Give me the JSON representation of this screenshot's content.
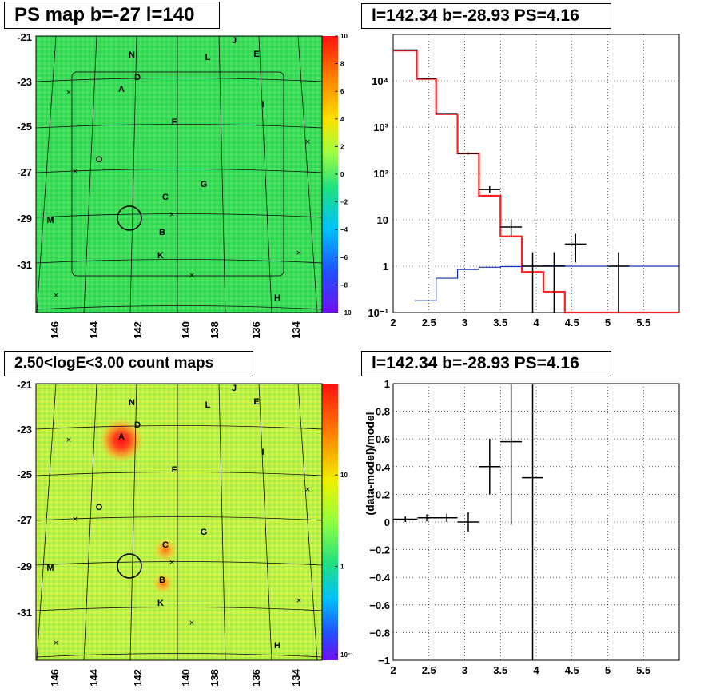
{
  "panels": {
    "tl_title": "PS map b=-27 l=140",
    "tr_title": "l=142.34 b=-28.93 PS=4.16",
    "bl_title": "2.50<logE<3.00 count maps",
    "br_title": "l=142.34 b=-28.93 PS=4.16"
  },
  "maps": {
    "y_ticks": [
      "-21",
      "-23",
      "-25",
      "-27",
      "-29",
      "-31"
    ],
    "x_ticks": [
      "146",
      "144",
      "142",
      "140",
      "138",
      "136",
      "134"
    ],
    "source_labels": [
      "J",
      "N",
      "L",
      "E",
      "D",
      "A",
      "I",
      "F",
      "O",
      "G",
      "C",
      "M",
      "B",
      "K",
      "H"
    ]
  },
  "colors": {
    "green": "#2ee05a",
    "yellow_green": "#b6f040",
    "red": "#ff2020",
    "blue": "#1030c0",
    "black": "#000000"
  },
  "chart_data": [
    {
      "type": "heatmap",
      "title": "PS map b=-27 l=140",
      "xlabel": "",
      "ylabel": "",
      "x_ticks": [
        146,
        144,
        142,
        140,
        138,
        136,
        134
      ],
      "y_ticks": [
        -21,
        -23,
        -25,
        -27,
        -29,
        -31
      ],
      "colorbar": {
        "ticks": [
          "10",
          "8",
          "6",
          "4",
          "2",
          "0",
          "−2",
          "−4",
          "−6",
          "−8",
          "−10"
        ],
        "range": [
          -10,
          10
        ]
      },
      "marker_circle": {
        "l": 142.34,
        "b": -28.93
      }
    },
    {
      "type": "line",
      "title": "l=142.34 b=-28.93 PS=4.16",
      "xlabel": "",
      "ylabel": "",
      "xlim": [
        2,
        6
      ],
      "ylim": [
        0.1,
        100000
      ],
      "ylog": true,
      "x_ticks": [
        "2",
        "2.5",
        "3",
        "3.5",
        "4",
        "4.5",
        "5",
        "5.5"
      ],
      "y_ticks": [
        "10⁻¹",
        "1",
        "10",
        "10²",
        "10³",
        "10⁴"
      ],
      "grid": true,
      "series": [
        {
          "color": "#ff2020",
          "step": true,
          "edges": [
            2.0,
            2.33,
            2.6,
            2.9,
            3.2,
            3.5,
            3.8,
            4.1,
            4.4,
            6.0
          ],
          "values": [
            45000,
            11000,
            1900,
            270,
            33,
            4.4,
            0.75,
            0.28,
            0.1
          ]
        },
        {
          "color": "#1030c0",
          "step": true,
          "edges": [
            2.3,
            2.6,
            2.9,
            3.2,
            3.5,
            3.8,
            4.1,
            4.4,
            6.0
          ],
          "values": [
            0.18,
            0.55,
            0.85,
            0.95,
            0.98,
            1.0,
            1.02,
            1.0
          ]
        },
        {
          "color": "#000000",
          "errorbars": true,
          "points": [
            {
              "x": 2.17,
              "y": 46000,
              "xerr": 0.17,
              "ylo": 44500,
              "yhi": 47500
            },
            {
              "x": 2.47,
              "y": 11300,
              "xerr": 0.13,
              "ylo": 10900,
              "yhi": 11700
            },
            {
              "x": 2.75,
              "y": 1950,
              "xerr": 0.15,
              "ylo": 1900,
              "yhi": 2000
            },
            {
              "x": 3.05,
              "y": 270,
              "xerr": 0.15,
              "ylo": 255,
              "yhi": 285
            },
            {
              "x": 3.35,
              "y": 45,
              "xerr": 0.15,
              "ylo": 38,
              "yhi": 53
            },
            {
              "x": 3.65,
              "y": 7,
              "xerr": 0.15,
              "ylo": 4.5,
              "yhi": 10
            },
            {
              "x": 3.95,
              "y": 1,
              "xerr": 0.15,
              "ylo": 0.1,
              "yhi": 2
            },
            {
              "x": 4.25,
              "y": 1,
              "xerr": 0.15,
              "ylo": 0.1,
              "yhi": 2
            },
            {
              "x": 4.55,
              "y": 3,
              "xerr": 0.15,
              "ylo": 1.2,
              "yhi": 5
            },
            {
              "x": 5.15,
              "y": 1,
              "xerr": 0.15,
              "ylo": 0.1,
              "yhi": 2
            }
          ]
        }
      ]
    },
    {
      "type": "heatmap",
      "title": "2.50<logE<3.00 count maps",
      "xlabel": "",
      "ylabel": "",
      "x_ticks": [
        146,
        144,
        142,
        140,
        138,
        136,
        134
      ],
      "y_ticks": [
        -21,
        -23,
        -25,
        -27,
        -29,
        -31
      ],
      "colorbar": {
        "ticks": [
          "10",
          "1",
          "10⁻¹"
        ],
        "log": true
      },
      "marker_circle": {
        "l": 142.34,
        "b": -28.93
      }
    },
    {
      "type": "scatter",
      "title": "l=142.34 b=-28.93 PS=4.16",
      "xlabel": "",
      "ylabel": "(data-model)/model",
      "xlim": [
        2,
        6
      ],
      "ylim": [
        -1,
        1
      ],
      "x_ticks": [
        "2",
        "2.5",
        "3",
        "3.5",
        "4",
        "4.5",
        "5",
        "5.5"
      ],
      "y_ticks": [
        "1",
        "0.8",
        "0.6",
        "0.4",
        "0.2",
        "0",
        "−0.2",
        "−0.4",
        "−0.6",
        "−0.8",
        "−1"
      ],
      "grid": true,
      "points": [
        {
          "x": 2.17,
          "y": 0.02,
          "xerr": 0.17,
          "ylo": 0.0,
          "yhi": 0.04
        },
        {
          "x": 2.47,
          "y": 0.03,
          "xerr": 0.13,
          "ylo": 0.005,
          "yhi": 0.055
        },
        {
          "x": 2.75,
          "y": 0.03,
          "xerr": 0.15,
          "ylo": 0.0,
          "yhi": 0.06
        },
        {
          "x": 3.05,
          "y": 0.0,
          "xerr": 0.15,
          "ylo": -0.07,
          "yhi": 0.07
        },
        {
          "x": 3.35,
          "y": 0.4,
          "xerr": 0.15,
          "ylo": 0.2,
          "yhi": 0.6
        },
        {
          "x": 3.65,
          "y": 0.58,
          "xerr": 0.15,
          "ylo": -0.02,
          "yhi": 1.0
        },
        {
          "x": 3.95,
          "y": 0.32,
          "xerr": 0.15,
          "ylo": -1.0,
          "yhi": 1.0
        }
      ]
    }
  ]
}
